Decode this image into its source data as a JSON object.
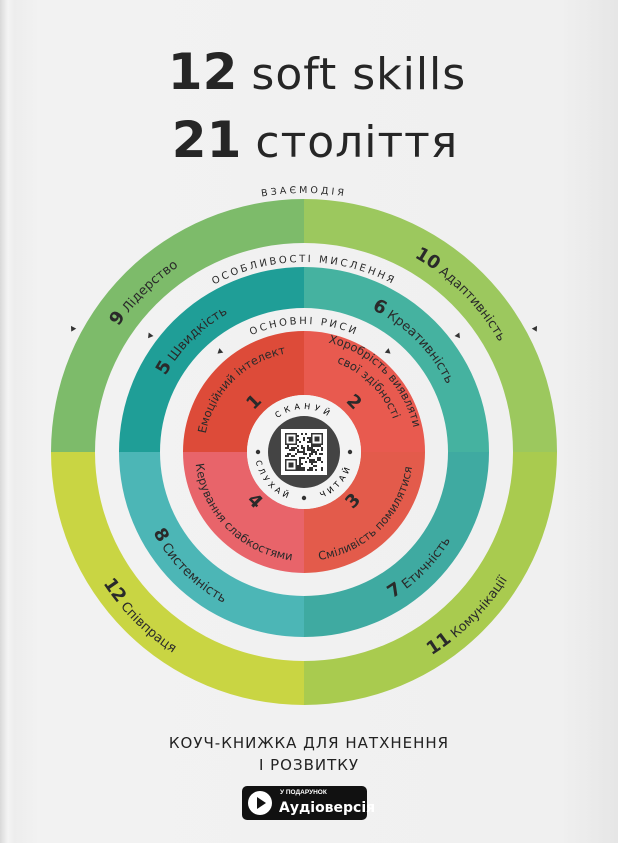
{
  "title": {
    "line1_number": "12",
    "line1_text": "soft skills",
    "line2_number": "21",
    "line2_text": "століття"
  },
  "rings": {
    "outer_label": "ВЗАЄМОДІЯ",
    "middle_label": "ОСОБЛИВОСТІ МИСЛЕННЯ",
    "inner_label": "ОСНОВНІ РИСИ"
  },
  "outer_skills": [
    {
      "num": "9",
      "label": "Лідерство",
      "color": "#7dbb6a"
    },
    {
      "num": "10",
      "label": "Адаптивність",
      "color": "#9cc85e"
    },
    {
      "num": "11",
      "label": "Комунікації",
      "color": "#a9cb4f"
    },
    {
      "num": "12",
      "label": "Співпраця",
      "color": "#c9d543"
    }
  ],
  "middle_skills": [
    {
      "num": "5",
      "label": "Швидкість",
      "color": "#1f9e97"
    },
    {
      "num": "6",
      "label": "Креативність",
      "color": "#45b2a0"
    },
    {
      "num": "7",
      "label": "Етичність",
      "color": "#3faaa1"
    },
    {
      "num": "8",
      "label": "Системність",
      "color": "#4cb6b6"
    }
  ],
  "core_traits": [
    {
      "num": "1",
      "label": "Емоційний інтелект",
      "color": "#dd4b39"
    },
    {
      "num": "2",
      "label": "Хоробрість виявляти",
      "label2": "свої здібності",
      "color": "#e85a4f"
    },
    {
      "num": "3",
      "label": "Сміливість помилятися",
      "color": "#e35b4b"
    },
    {
      "num": "4",
      "label": "Керування слабкостями",
      "color": "#e8646a"
    }
  ],
  "center": {
    "scan": "СКАНУЙ",
    "listen": "СЛУХАЙ",
    "read": "ЧИТАЙ",
    "icon": "qr-code"
  },
  "subtitle": {
    "line1": "КОУЧ-КНИЖКА ДЛЯ НАТХНЕННЯ",
    "line2": "І РОЗВИТКУ"
  },
  "badge": {
    "small": "У ПОДАРУНОК",
    "big": "Аудіоверсія",
    "icon": "play-icon"
  }
}
